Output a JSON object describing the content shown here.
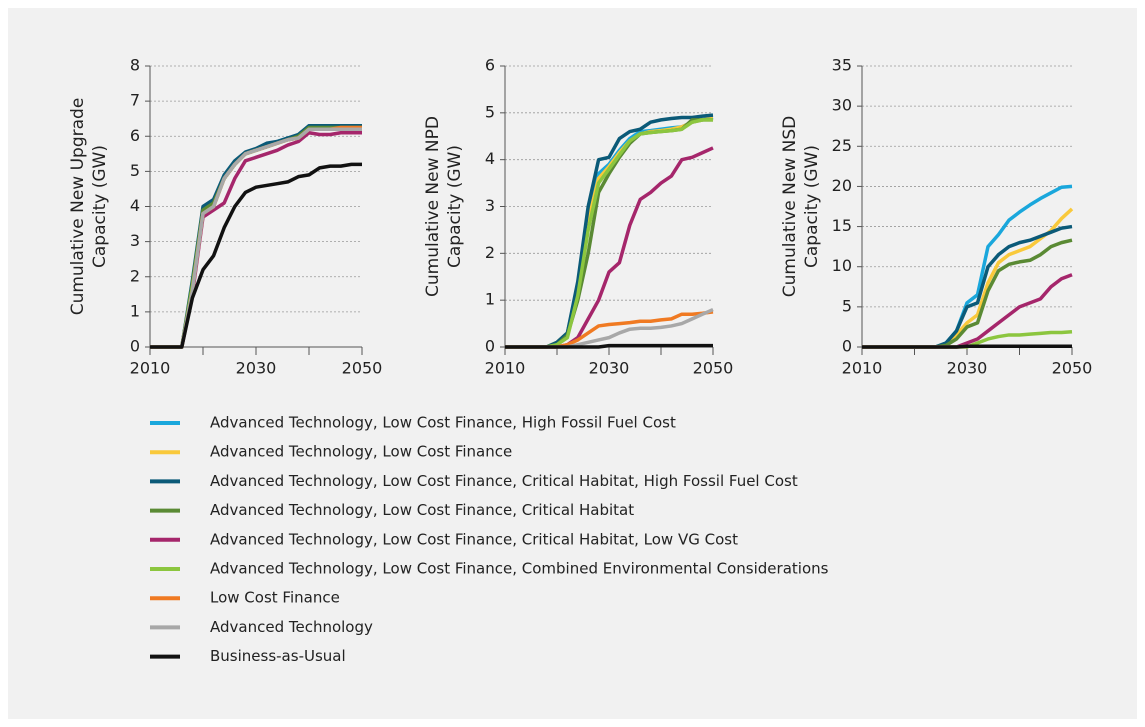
{
  "legend": [
    {
      "name": "Advanced Technology, Low Cost Finance, High Fossil Fuel Cost",
      "color": "#1aa7dc"
    },
    {
      "name": "Advanced Technology, Low Cost Finance",
      "color": "#f9c93b"
    },
    {
      "name": "Advanced Technology, Low Cost Finance, Critical Habitat, High Fossil Fuel Cost",
      "color": "#0b5a78"
    },
    {
      "name": "Advanced Technology, Low Cost Finance, Critical Habitat",
      "color": "#5a8a34"
    },
    {
      "name": "Advanced Technology, Low Cost Finance, Critical Habitat, Low VG Cost",
      "color": "#a5266b"
    },
    {
      "name": "Advanced Technology, Low Cost Finance, Combined Environmental Considerations",
      "color": "#8cc63f"
    },
    {
      "name": "Low Cost Finance",
      "color": "#f07a22"
    },
    {
      "name": "Advanced Technology",
      "color": "#a8a8a8"
    },
    {
      "name": "Business-as-Usual",
      "color": "#111111"
    }
  ],
  "chart_data": [
    {
      "type": "line",
      "ylabel": [
        "Cumulative New Upgrade",
        "Capacity (GW)"
      ],
      "x": [
        2010,
        2012,
        2014,
        2016,
        2018,
        2020,
        2022,
        2024,
        2026,
        2028,
        2030,
        2032,
        2034,
        2036,
        2038,
        2040,
        2042,
        2044,
        2046,
        2048,
        2050
      ],
      "xlim": [
        2010,
        2050
      ],
      "xticks": [
        2010,
        2030,
        2050
      ],
      "xminorticks": [
        2020,
        2040
      ],
      "ylim": [
        0,
        8
      ],
      "yticks": [
        0,
        1,
        2,
        3,
        4,
        5,
        6,
        7,
        8
      ],
      "grid": true,
      "series": [
        {
          "values": [
            0,
            0,
            0,
            0,
            1.8,
            3.9,
            4.1,
            4.8,
            5.2,
            5.5,
            5.6,
            5.75,
            5.85,
            5.95,
            6.0,
            6.3,
            6.3,
            6.3,
            6.3,
            6.3,
            6.3
          ]
        },
        {
          "values": [
            0,
            0,
            0,
            0,
            1.7,
            3.85,
            4.05,
            4.8,
            5.2,
            5.5,
            5.6,
            5.7,
            5.8,
            5.9,
            6.0,
            6.25,
            6.25,
            6.25,
            6.25,
            6.25,
            6.25
          ]
        },
        {
          "values": [
            0,
            0,
            0,
            0,
            1.9,
            4.0,
            4.2,
            4.9,
            5.3,
            5.55,
            5.65,
            5.8,
            5.85,
            5.95,
            6.05,
            6.3,
            6.3,
            6.3,
            6.3,
            6.3,
            6.3
          ]
        },
        {
          "values": [
            0,
            0,
            0,
            0,
            1.8,
            3.9,
            4.1,
            4.8,
            5.2,
            5.5,
            5.6,
            5.7,
            5.8,
            5.9,
            6.0,
            6.25,
            6.25,
            6.25,
            6.25,
            6.25,
            6.25
          ]
        },
        {
          "values": [
            0,
            0,
            0,
            0,
            1.5,
            3.7,
            3.9,
            4.1,
            4.8,
            5.3,
            5.4,
            5.5,
            5.6,
            5.75,
            5.85,
            6.1,
            6.05,
            6.05,
            6.1,
            6.1,
            6.1
          ]
        },
        {
          "values": [
            0,
            0,
            0,
            0,
            1.7,
            3.8,
            4.0,
            4.8,
            5.2,
            5.5,
            5.6,
            5.7,
            5.8,
            5.9,
            5.95,
            6.2,
            6.2,
            6.2,
            6.2,
            6.2,
            6.2
          ]
        },
        {
          "values": [
            0,
            0,
            0,
            0,
            1.6,
            3.8,
            4.0,
            4.8,
            5.2,
            5.5,
            5.6,
            5.7,
            5.8,
            5.9,
            5.95,
            6.2,
            6.2,
            6.2,
            6.25,
            6.25,
            6.25
          ]
        },
        {
          "values": [
            0,
            0,
            0,
            0,
            1.6,
            3.8,
            4.0,
            4.8,
            5.2,
            5.5,
            5.6,
            5.7,
            5.8,
            5.9,
            5.95,
            6.2,
            6.2,
            6.2,
            6.2,
            6.2,
            6.2
          ]
        },
        {
          "values": [
            0,
            0,
            0,
            0,
            1.4,
            2.2,
            2.6,
            3.4,
            4.0,
            4.4,
            4.55,
            4.6,
            4.65,
            4.7,
            4.85,
            4.9,
            5.1,
            5.15,
            5.15,
            5.2,
            5.2
          ]
        }
      ]
    },
    {
      "type": "line",
      "ylabel": [
        "Cumulative New NPD",
        "Capacity (GW)"
      ],
      "x": [
        2010,
        2012,
        2014,
        2016,
        2018,
        2020,
        2022,
        2024,
        2026,
        2028,
        2030,
        2032,
        2034,
        2036,
        2038,
        2040,
        2042,
        2044,
        2046,
        2048,
        2050
      ],
      "xlim": [
        2010,
        2050
      ],
      "xticks": [
        2010,
        2030,
        2050
      ],
      "xminorticks": [
        2020,
        2040
      ],
      "ylim": [
        0,
        6
      ],
      "yticks": [
        0,
        1,
        2,
        3,
        4,
        5,
        6
      ],
      "grid": true,
      "series": [
        {
          "values": [
            0,
            0,
            0,
            0,
            0,
            0.1,
            0.3,
            1.3,
            2.8,
            3.7,
            3.9,
            4.2,
            4.45,
            4.6,
            4.62,
            4.65,
            4.68,
            4.7,
            4.8,
            4.85,
            4.9
          ]
        },
        {
          "values": [
            0,
            0,
            0,
            0,
            0,
            0.1,
            0.3,
            1.2,
            2.7,
            3.6,
            3.85,
            4.15,
            4.4,
            4.55,
            4.6,
            4.62,
            4.65,
            4.7,
            4.8,
            4.85,
            4.88
          ]
        },
        {
          "values": [
            0,
            0,
            0,
            0,
            0,
            0.1,
            0.3,
            1.4,
            3.0,
            4.0,
            4.05,
            4.45,
            4.6,
            4.65,
            4.8,
            4.85,
            4.88,
            4.9,
            4.9,
            4.93,
            4.95
          ]
        },
        {
          "values": [
            0,
            0,
            0,
            0,
            0,
            0.05,
            0.25,
            1.0,
            2.0,
            3.3,
            3.7,
            4.05,
            4.35,
            4.55,
            4.58,
            4.6,
            4.62,
            4.65,
            4.85,
            4.85,
            4.85
          ]
        },
        {
          "values": [
            0,
            0,
            0,
            0,
            0,
            0,
            0.05,
            0.2,
            0.6,
            1.0,
            1.6,
            1.8,
            2.6,
            3.15,
            3.3,
            3.5,
            3.65,
            4.0,
            4.05,
            4.15,
            4.25
          ]
        },
        {
          "values": [
            0,
            0,
            0,
            0,
            0,
            0.05,
            0.2,
            1.1,
            2.5,
            3.5,
            3.8,
            4.1,
            4.4,
            4.55,
            4.58,
            4.6,
            4.62,
            4.65,
            4.8,
            4.85,
            4.85
          ]
        },
        {
          "values": [
            0,
            0,
            0,
            0,
            0,
            0,
            0.05,
            0.15,
            0.3,
            0.45,
            0.48,
            0.5,
            0.52,
            0.55,
            0.55,
            0.58,
            0.6,
            0.7,
            0.7,
            0.72,
            0.75
          ]
        },
        {
          "values": [
            0,
            0,
            0,
            0,
            0,
            0,
            0,
            0.05,
            0.1,
            0.15,
            0.2,
            0.3,
            0.38,
            0.4,
            0.4,
            0.42,
            0.45,
            0.5,
            0.6,
            0.7,
            0.8
          ]
        },
        {
          "values": [
            0,
            0,
            0,
            0,
            0,
            0,
            0,
            0,
            0,
            0,
            0.03,
            0.03,
            0.03,
            0.03,
            0.03,
            0.03,
            0.03,
            0.03,
            0.03,
            0.03,
            0.03
          ]
        }
      ]
    },
    {
      "type": "line",
      "ylabel": [
        "Cumulative New NSD",
        "Capacity (GW)"
      ],
      "x": [
        2010,
        2012,
        2014,
        2016,
        2018,
        2020,
        2022,
        2024,
        2026,
        2028,
        2030,
        2032,
        2034,
        2036,
        2038,
        2040,
        2042,
        2044,
        2046,
        2048,
        2050
      ],
      "xlim": [
        2010,
        2050
      ],
      "xticks": [
        2010,
        2030,
        2050
      ],
      "xminorticks": [
        2020,
        2040
      ],
      "ylim": [
        0,
        35
      ],
      "yticks": [
        0,
        5,
        10,
        15,
        20,
        25,
        30,
        35
      ],
      "grid": true,
      "series": [
        {
          "values": [
            0,
            0,
            0,
            0,
            0,
            0,
            0,
            0,
            0.5,
            2,
            5.5,
            6.5,
            12.5,
            14,
            15.8,
            16.8,
            17.7,
            18.5,
            19.2,
            19.9,
            20
          ]
        },
        {
          "values": [
            0,
            0,
            0,
            0,
            0,
            0,
            0,
            0,
            0.3,
            1.5,
            3,
            4,
            8,
            10.5,
            11.5,
            12,
            12.5,
            13.5,
            14.5,
            16,
            17.2
          ]
        },
        {
          "values": [
            0,
            0,
            0,
            0,
            0,
            0,
            0,
            0,
            0.5,
            2,
            5,
            5.5,
            10,
            11.5,
            12.5,
            13,
            13.3,
            13.8,
            14.3,
            14.8,
            15
          ]
        },
        {
          "values": [
            0,
            0,
            0,
            0,
            0,
            0,
            0,
            0,
            0.2,
            1,
            2.5,
            3,
            7,
            9.5,
            10.3,
            10.6,
            10.8,
            11.5,
            12.5,
            13,
            13.3
          ]
        },
        {
          "values": [
            0,
            0,
            0,
            0,
            0,
            0,
            0,
            0,
            0,
            0,
            0.5,
            1,
            2,
            3,
            4,
            5,
            5.5,
            6,
            7.5,
            8.5,
            9
          ]
        },
        {
          "values": [
            0,
            0,
            0,
            0,
            0,
            0,
            0,
            0,
            0,
            0,
            0,
            0.5,
            1,
            1.3,
            1.5,
            1.5,
            1.6,
            1.7,
            1.8,
            1.8,
            1.9
          ]
        },
        {
          "values": [
            0,
            0,
            0,
            0,
            0,
            0,
            0,
            0,
            0,
            0,
            0.1,
            0.1,
            0.1,
            0.1,
            0.1,
            0.1,
            0.1,
            0.1,
            0.1,
            0.1,
            0.1
          ]
        },
        {
          "values": [
            0,
            0,
            0,
            0,
            0,
            0,
            0,
            0,
            0,
            0,
            0.1,
            0.1,
            0.1,
            0.1,
            0.1,
            0.1,
            0.1,
            0.1,
            0.1,
            0.1,
            0.1
          ]
        },
        {
          "values": [
            0,
            0,
            0,
            0,
            0,
            0,
            0,
            0,
            0,
            0,
            0.1,
            0.1,
            0.1,
            0.1,
            0.1,
            0.1,
            0.1,
            0.1,
            0.1,
            0.1,
            0.1
          ]
        }
      ]
    }
  ]
}
